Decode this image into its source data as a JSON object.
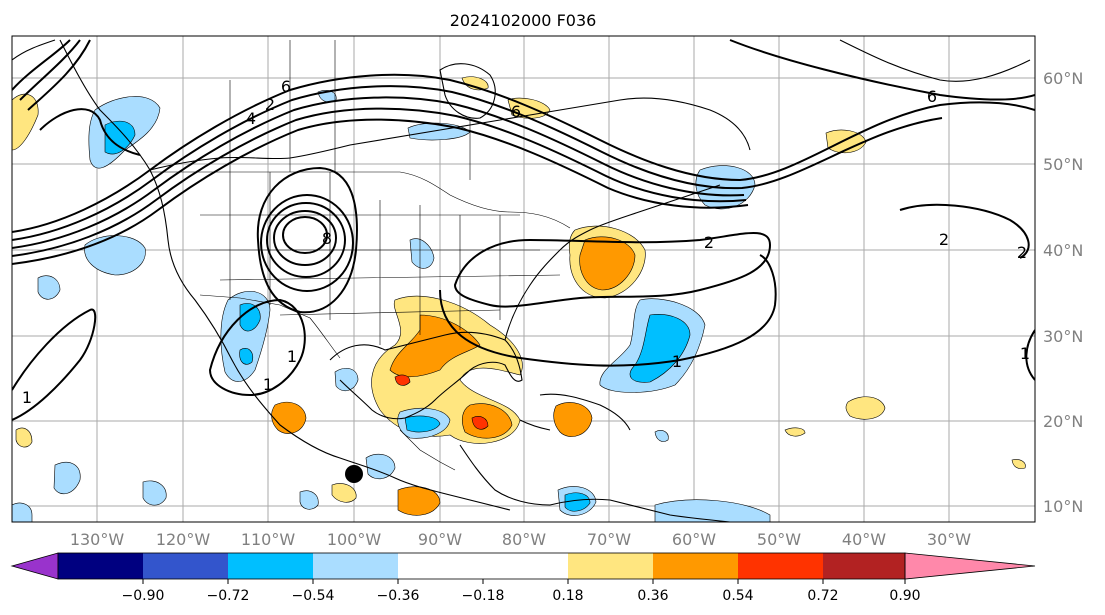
{
  "title": "2024102000 F036",
  "latitude_labels": [
    "60°N",
    "50°N",
    "40°N",
    "30°N",
    "20°N",
    "10°N"
  ],
  "longitude_labels": [
    "130°W",
    "120°W",
    "110°W",
    "100°W",
    "90°W",
    "80°W",
    "70°W",
    "60°W",
    "50°W",
    "40°W",
    "30°W"
  ],
  "contour_labels": [
    "6",
    "6",
    "4",
    "2",
    "6",
    "8",
    "2",
    "2",
    "2",
    "1",
    "1",
    "1",
    "1",
    "1"
  ],
  "colorbar": {
    "tick_labels": [
      "−0.90",
      "−0.72",
      "−0.54",
      "−0.36",
      "−0.18",
      "0.18",
      "0.36",
      "0.54",
      "0.72",
      "0.90"
    ],
    "colors": {
      "below_min": "#9933cc",
      "bin_1": "#000080",
      "bin_2": "#3355cc",
      "bin_3": "#00bfff",
      "bin_4": "#aaddff",
      "bin_5": "#ffffff",
      "bin_6": "#ffe680",
      "bin_7": "#ff9900",
      "bin_8": "#ff3300",
      "bin_9": "#b22222",
      "above_max": "#ff88aa"
    }
  },
  "marker": {
    "type": "storm-center-dot",
    "color": "#000000"
  }
}
